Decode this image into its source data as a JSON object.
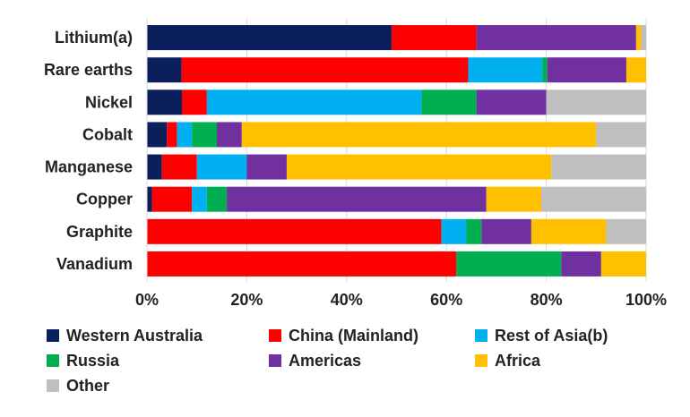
{
  "chart_data": {
    "type": "bar",
    "orientation": "horizontal",
    "stacked": true,
    "normalized": true,
    "categories": [
      "Lithium(a)",
      "Rare earths",
      "Nickel",
      "Cobalt",
      "Manganese",
      "Copper",
      "Graphite",
      "Vanadium"
    ],
    "series": [
      {
        "name": "Western Australia",
        "color": "#0a1f5c",
        "values": [
          49,
          7,
          7,
          4,
          3,
          1,
          0,
          0
        ]
      },
      {
        "name": "China (Mainland)",
        "color": "#ff0000",
        "values": [
          17,
          58,
          5,
          2,
          7,
          8,
          59,
          62
        ]
      },
      {
        "name": "Rest of Asia(b)",
        "color": "#00b0f0",
        "values": [
          0,
          15,
          43,
          3,
          10,
          3,
          5,
          0
        ]
      },
      {
        "name": "Russia",
        "color": "#00b050",
        "values": [
          0,
          1,
          11,
          5,
          0,
          4,
          3,
          21
        ]
      },
      {
        "name": "Americas",
        "color": "#7030a0",
        "values": [
          32,
          16,
          14,
          5,
          8,
          52,
          10,
          8
        ]
      },
      {
        "name": "Africa",
        "color": "#ffc000",
        "values": [
          1,
          4,
          0,
          71,
          53,
          11,
          15,
          9
        ]
      },
      {
        "name": "Other",
        "color": "#bfbfbf",
        "values": [
          1,
          0,
          20,
          10,
          19,
          21,
          8,
          0
        ]
      }
    ],
    "x_ticks": [
      "0%",
      "20%",
      "40%",
      "60%",
      "80%",
      "100%"
    ],
    "xlim": [
      0,
      100
    ],
    "grid": true,
    "legend": "bottom"
  }
}
